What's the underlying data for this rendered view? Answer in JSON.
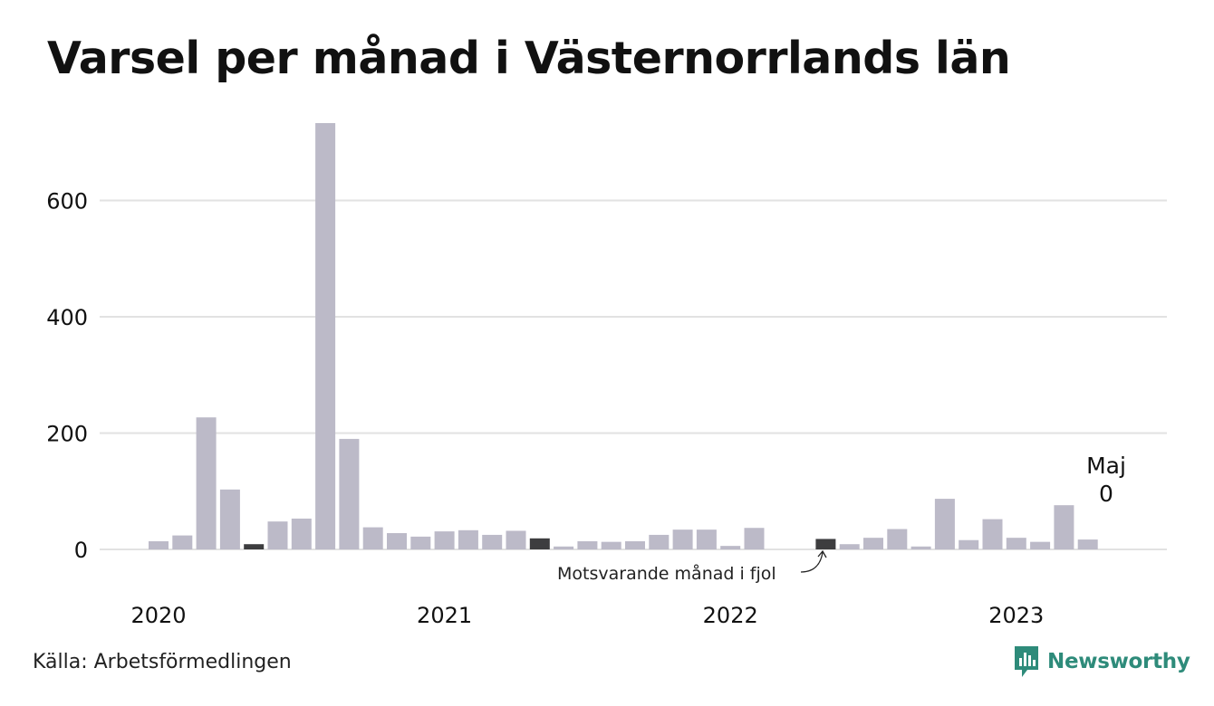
{
  "title": "Varsel per månad i Västernorrlands län",
  "source": "Källa: Arbetsförmedlingen",
  "brand": "Newsworthy",
  "colors": {
    "bar": "#bcbac8",
    "highlight": "#3d3d3f",
    "grid": "#e2e2e2",
    "brand": "#2e8b7a"
  },
  "chart_data": {
    "type": "bar",
    "x": [
      "2020-01",
      "2020-02",
      "2020-03",
      "2020-04",
      "2020-05",
      "2020-06",
      "2020-07",
      "2020-08",
      "2020-09",
      "2020-10",
      "2020-11",
      "2020-12",
      "2021-01",
      "2021-02",
      "2021-03",
      "2021-04",
      "2021-05",
      "2021-06",
      "2021-07",
      "2021-08",
      "2021-09",
      "2021-10",
      "2021-11",
      "2021-12",
      "2022-01",
      "2022-02",
      "2022-03",
      "2022-04",
      "2022-05",
      "2022-06",
      "2022-07",
      "2022-08",
      "2022-09",
      "2022-10",
      "2022-11",
      "2022-12",
      "2023-01",
      "2023-02",
      "2023-03",
      "2023-04",
      "2023-05"
    ],
    "values": [
      14,
      24,
      227,
      103,
      9,
      48,
      53,
      733,
      190,
      38,
      28,
      22,
      31,
      33,
      25,
      32,
      19,
      5,
      14,
      13,
      14,
      25,
      34,
      34,
      6,
      37,
      0,
      0,
      18,
      9,
      20,
      35,
      5,
      87,
      16,
      52,
      20,
      13,
      76,
      17,
      0
    ],
    "highlighted": [
      "2020-05",
      "2021-05",
      "2022-05"
    ],
    "ylim": [
      0,
      733
    ],
    "yticks": [
      0,
      200,
      400,
      600
    ],
    "xticks": [
      "2020",
      "2021",
      "2022",
      "2023"
    ],
    "grid": true,
    "annotations": {
      "prev_year": "Motsvarande månad i fjol",
      "last_month": "Maj",
      "last_value": "0"
    }
  }
}
